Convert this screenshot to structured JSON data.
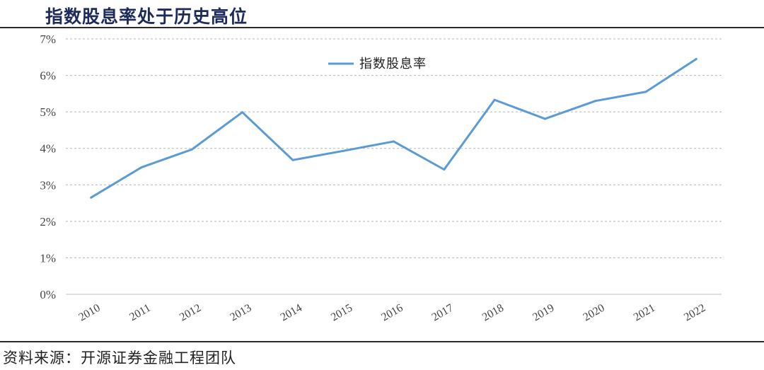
{
  "header": {
    "title": "指数股息率处于历史高位"
  },
  "footer": {
    "source": "资料来源：开源证券金融工程团队"
  },
  "chart_data": {
    "type": "line",
    "title": "",
    "xlabel": "",
    "ylabel": "",
    "x": [
      "2010",
      "2011",
      "2012",
      "2013",
      "2014",
      "2015",
      "2016",
      "2017",
      "2018",
      "2019",
      "2020",
      "2021",
      "2022"
    ],
    "series": [
      {
        "name": "指数股息率",
        "values": [
          2.65,
          3.48,
          3.97,
          4.99,
          3.68,
          3.93,
          4.19,
          3.42,
          5.33,
          4.81,
          5.3,
          5.55,
          6.45
        ],
        "color": "#5b9bd5"
      }
    ],
    "ylim": [
      0,
      7
    ],
    "yticks": [
      "0%",
      "1%",
      "2%",
      "3%",
      "4%",
      "5%",
      "6%",
      "7%"
    ],
    "grid": true,
    "legend": "top-center"
  }
}
